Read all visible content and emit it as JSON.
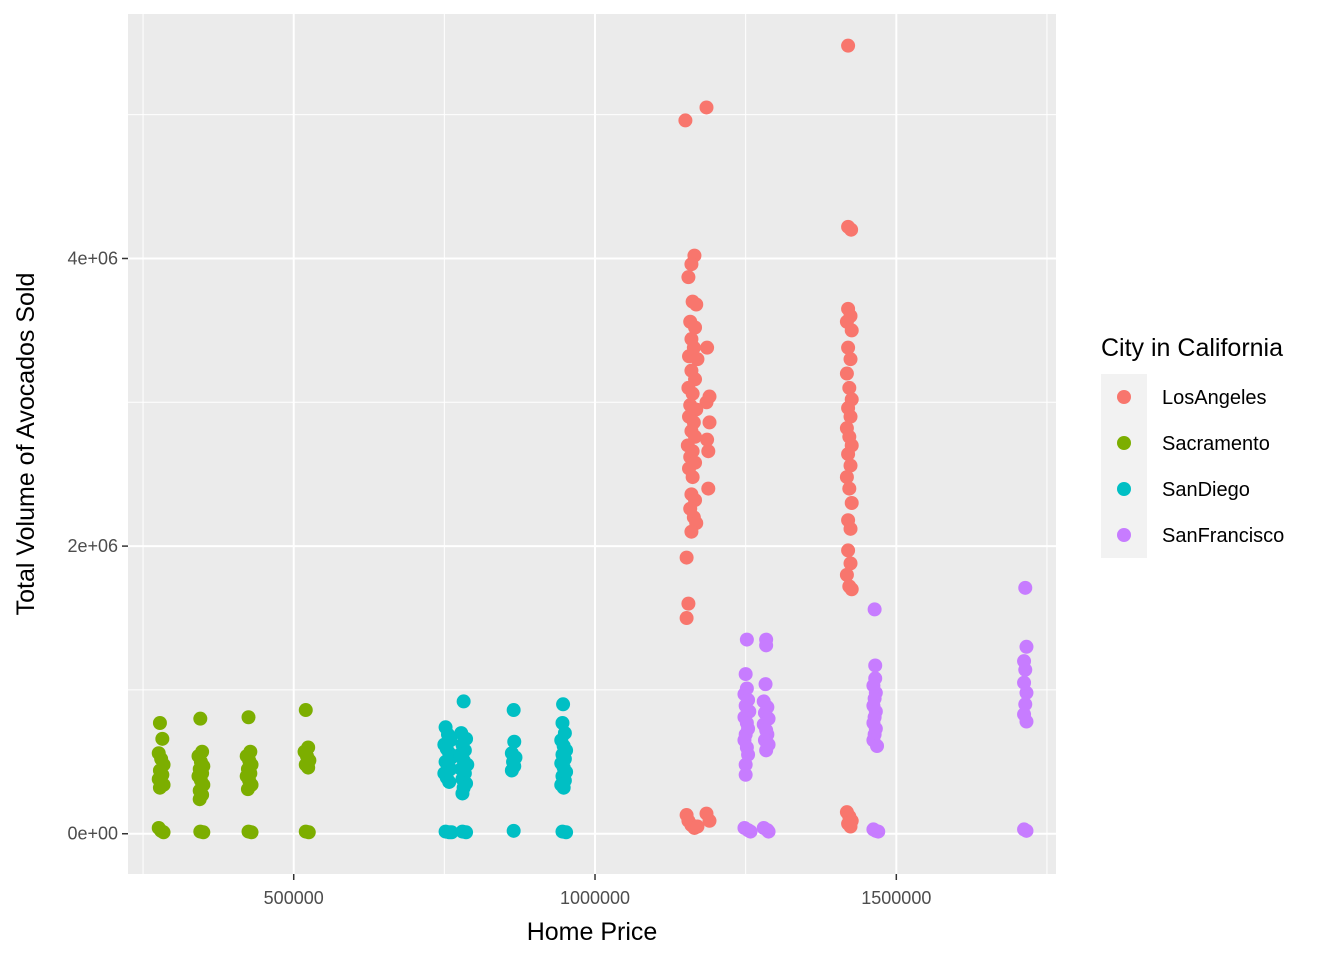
{
  "chart_data": {
    "type": "scatter",
    "xlabel": "Home Price",
    "ylabel": "Total Volume of Avocados Sold",
    "xlim": [
      225000,
      1765000
    ],
    "ylim": [
      -280000,
      5700000
    ],
    "x_ticks": [
      500000,
      1000000,
      1500000
    ],
    "x_tick_labels": [
      "500000",
      "1000000",
      "1500000"
    ],
    "y_ticks": [
      0,
      2000000,
      4000000
    ],
    "y_tick_labels": [
      "0e+00",
      "2e+06",
      "4e+06"
    ],
    "grid": true,
    "panel_background": "#ebebeb",
    "legend": {
      "title": "City in California",
      "position": "right"
    },
    "series": [
      {
        "name": "LosAngeles",
        "color": "#f8766d",
        "points": [
          [
            1150000,
            4960000
          ],
          [
            1185000,
            5050000
          ],
          [
            1420000,
            5480000
          ],
          [
            1165000,
            4020000
          ],
          [
            1160000,
            3960000
          ],
          [
            1155000,
            3870000
          ],
          [
            1162000,
            3700000
          ],
          [
            1168000,
            3680000
          ],
          [
            1158000,
            3560000
          ],
          [
            1166000,
            3520000
          ],
          [
            1160000,
            3440000
          ],
          [
            1164000,
            3380000
          ],
          [
            1186000,
            3380000
          ],
          [
            1156000,
            3320000
          ],
          [
            1170000,
            3300000
          ],
          [
            1160000,
            3220000
          ],
          [
            1166000,
            3160000
          ],
          [
            1155000,
            3100000
          ],
          [
            1162000,
            3060000
          ],
          [
            1190000,
            3040000
          ],
          [
            1185000,
            3000000
          ],
          [
            1158000,
            2980000
          ],
          [
            1168000,
            2950000
          ],
          [
            1156000,
            2900000
          ],
          [
            1164000,
            2860000
          ],
          [
            1190000,
            2860000
          ],
          [
            1160000,
            2800000
          ],
          [
            1166000,
            2760000
          ],
          [
            1186000,
            2740000
          ],
          [
            1154000,
            2700000
          ],
          [
            1162000,
            2660000
          ],
          [
            1188000,
            2660000
          ],
          [
            1158000,
            2620000
          ],
          [
            1166000,
            2580000
          ],
          [
            1156000,
            2540000
          ],
          [
            1162000,
            2480000
          ],
          [
            1188000,
            2400000
          ],
          [
            1160000,
            2360000
          ],
          [
            1166000,
            2320000
          ],
          [
            1158000,
            2260000
          ],
          [
            1164000,
            2200000
          ],
          [
            1168000,
            2160000
          ],
          [
            1160000,
            2100000
          ],
          [
            1152000,
            1920000
          ],
          [
            1155000,
            1600000
          ],
          [
            1152000,
            1500000
          ],
          [
            1152000,
            130000
          ],
          [
            1155000,
            90000
          ],
          [
            1160000,
            60000
          ],
          [
            1165000,
            40000
          ],
          [
            1185000,
            140000
          ],
          [
            1190000,
            90000
          ],
          [
            1170000,
            50000
          ],
          [
            1420000,
            4220000
          ],
          [
            1425000,
            4200000
          ],
          [
            1420000,
            3650000
          ],
          [
            1424000,
            3600000
          ],
          [
            1418000,
            3560000
          ],
          [
            1426000,
            3500000
          ],
          [
            1420000,
            3380000
          ],
          [
            1424000,
            3300000
          ],
          [
            1418000,
            3200000
          ],
          [
            1422000,
            3100000
          ],
          [
            1426000,
            3020000
          ],
          [
            1420000,
            2960000
          ],
          [
            1424000,
            2900000
          ],
          [
            1418000,
            2820000
          ],
          [
            1422000,
            2760000
          ],
          [
            1426000,
            2700000
          ],
          [
            1420000,
            2640000
          ],
          [
            1424000,
            2560000
          ],
          [
            1418000,
            2480000
          ],
          [
            1422000,
            2400000
          ],
          [
            1426000,
            2300000
          ],
          [
            1420000,
            2180000
          ],
          [
            1424000,
            2120000
          ],
          [
            1420000,
            1970000
          ],
          [
            1424000,
            1880000
          ],
          [
            1418000,
            1800000
          ],
          [
            1422000,
            1720000
          ],
          [
            1426000,
            1700000
          ],
          [
            1418000,
            150000
          ],
          [
            1422000,
            120000
          ],
          [
            1426000,
            90000
          ],
          [
            1420000,
            70000
          ],
          [
            1424000,
            50000
          ]
        ]
      },
      {
        "name": "Sacramento",
        "color": "#7cae00",
        "points": [
          [
            278000,
            770000
          ],
          [
            282000,
            660000
          ],
          [
            276000,
            560000
          ],
          [
            280000,
            520000
          ],
          [
            284000,
            480000
          ],
          [
            278000,
            440000
          ],
          [
            282000,
            410000
          ],
          [
            276000,
            380000
          ],
          [
            280000,
            360000
          ],
          [
            284000,
            340000
          ],
          [
            278000,
            320000
          ],
          [
            276000,
            40000
          ],
          [
            280000,
            20000
          ],
          [
            284000,
            10000
          ],
          [
            345000,
            800000
          ],
          [
            348000,
            570000
          ],
          [
            342000,
            540000
          ],
          [
            346000,
            500000
          ],
          [
            350000,
            470000
          ],
          [
            344000,
            450000
          ],
          [
            348000,
            420000
          ],
          [
            342000,
            400000
          ],
          [
            346000,
            370000
          ],
          [
            350000,
            340000
          ],
          [
            344000,
            300000
          ],
          [
            348000,
            270000
          ],
          [
            344000,
            240000
          ],
          [
            345000,
            15000
          ],
          [
            350000,
            10000
          ],
          [
            425000,
            810000
          ],
          [
            428000,
            570000
          ],
          [
            422000,
            540000
          ],
          [
            426000,
            510000
          ],
          [
            430000,
            480000
          ],
          [
            424000,
            450000
          ],
          [
            428000,
            420000
          ],
          [
            422000,
            400000
          ],
          [
            426000,
            370000
          ],
          [
            430000,
            340000
          ],
          [
            424000,
            310000
          ],
          [
            425000,
            15000
          ],
          [
            430000,
            10000
          ],
          [
            520000,
            860000
          ],
          [
            524000,
            600000
          ],
          [
            518000,
            570000
          ],
          [
            522000,
            540000
          ],
          [
            526000,
            510000
          ],
          [
            520000,
            480000
          ],
          [
            524000,
            460000
          ],
          [
            520000,
            15000
          ],
          [
            525000,
            10000
          ]
        ]
      },
      {
        "name": "SanDiego",
        "color": "#00bfc4",
        "points": [
          [
            752000,
            740000
          ],
          [
            756000,
            690000
          ],
          [
            760000,
            650000
          ],
          [
            750000,
            620000
          ],
          [
            754000,
            590000
          ],
          [
            758000,
            560000
          ],
          [
            762000,
            530000
          ],
          [
            752000,
            500000
          ],
          [
            756000,
            470000
          ],
          [
            760000,
            450000
          ],
          [
            750000,
            420000
          ],
          [
            754000,
            390000
          ],
          [
            758000,
            360000
          ],
          [
            752000,
            15000
          ],
          [
            758000,
            10000
          ],
          [
            762000,
            10000
          ],
          [
            782000,
            920000
          ],
          [
            778000,
            700000
          ],
          [
            786000,
            660000
          ],
          [
            780000,
            620000
          ],
          [
            784000,
            580000
          ],
          [
            776000,
            550000
          ],
          [
            782000,
            510000
          ],
          [
            788000,
            480000
          ],
          [
            778000,
            450000
          ],
          [
            784000,
            420000
          ],
          [
            780000,
            380000
          ],
          [
            786000,
            350000
          ],
          [
            782000,
            320000
          ],
          [
            780000,
            280000
          ],
          [
            780000,
            15000
          ],
          [
            786000,
            10000
          ],
          [
            865000,
            860000
          ],
          [
            866000,
            640000
          ],
          [
            862000,
            560000
          ],
          [
            868000,
            530000
          ],
          [
            864000,
            500000
          ],
          [
            866000,
            470000
          ],
          [
            862000,
            440000
          ],
          [
            865000,
            20000
          ],
          [
            947000,
            900000
          ],
          [
            946000,
            770000
          ],
          [
            950000,
            700000
          ],
          [
            944000,
            650000
          ],
          [
            948000,
            610000
          ],
          [
            952000,
            580000
          ],
          [
            946000,
            550000
          ],
          [
            950000,
            520000
          ],
          [
            944000,
            490000
          ],
          [
            948000,
            460000
          ],
          [
            952000,
            430000
          ],
          [
            946000,
            400000
          ],
          [
            950000,
            370000
          ],
          [
            944000,
            340000
          ],
          [
            948000,
            320000
          ],
          [
            946000,
            15000
          ],
          [
            952000,
            10000
          ]
        ]
      },
      {
        "name": "SanFrancisco",
        "color": "#c77cff",
        "points": [
          [
            1252000,
            1350000
          ],
          [
            1250000,
            1110000
          ],
          [
            1252000,
            1010000
          ],
          [
            1248000,
            970000
          ],
          [
            1254000,
            930000
          ],
          [
            1250000,
            890000
          ],
          [
            1256000,
            850000
          ],
          [
            1248000,
            810000
          ],
          [
            1252000,
            770000
          ],
          [
            1254000,
            730000
          ],
          [
            1250000,
            690000
          ],
          [
            1248000,
            650000
          ],
          [
            1252000,
            600000
          ],
          [
            1254000,
            550000
          ],
          [
            1250000,
            480000
          ],
          [
            1250000,
            410000
          ],
          [
            1248000,
            40000
          ],
          [
            1254000,
            25000
          ],
          [
            1258000,
            15000
          ],
          [
            1284000,
            1350000
          ],
          [
            1284000,
            1310000
          ],
          [
            1283000,
            1040000
          ],
          [
            1280000,
            920000
          ],
          [
            1286000,
            880000
          ],
          [
            1282000,
            840000
          ],
          [
            1288000,
            800000
          ],
          [
            1280000,
            760000
          ],
          [
            1284000,
            720000
          ],
          [
            1286000,
            690000
          ],
          [
            1282000,
            650000
          ],
          [
            1288000,
            620000
          ],
          [
            1284000,
            580000
          ],
          [
            1280000,
            40000
          ],
          [
            1286000,
            25000
          ],
          [
            1288000,
            15000
          ],
          [
            1464000,
            1560000
          ],
          [
            1465000,
            1170000
          ],
          [
            1465000,
            1080000
          ],
          [
            1462000,
            1030000
          ],
          [
            1466000,
            980000
          ],
          [
            1464000,
            940000
          ],
          [
            1462000,
            890000
          ],
          [
            1466000,
            850000
          ],
          [
            1464000,
            810000
          ],
          [
            1462000,
            770000
          ],
          [
            1466000,
            730000
          ],
          [
            1464000,
            690000
          ],
          [
            1462000,
            650000
          ],
          [
            1468000,
            610000
          ],
          [
            1462000,
            30000
          ],
          [
            1466000,
            20000
          ],
          [
            1470000,
            15000
          ],
          [
            1714000,
            1710000
          ],
          [
            1716000,
            1300000
          ],
          [
            1712000,
            1200000
          ],
          [
            1714000,
            1140000
          ],
          [
            1712000,
            1050000
          ],
          [
            1716000,
            980000
          ],
          [
            1714000,
            900000
          ],
          [
            1712000,
            830000
          ],
          [
            1716000,
            780000
          ],
          [
            1712000,
            30000
          ],
          [
            1716000,
            20000
          ]
        ]
      }
    ]
  }
}
